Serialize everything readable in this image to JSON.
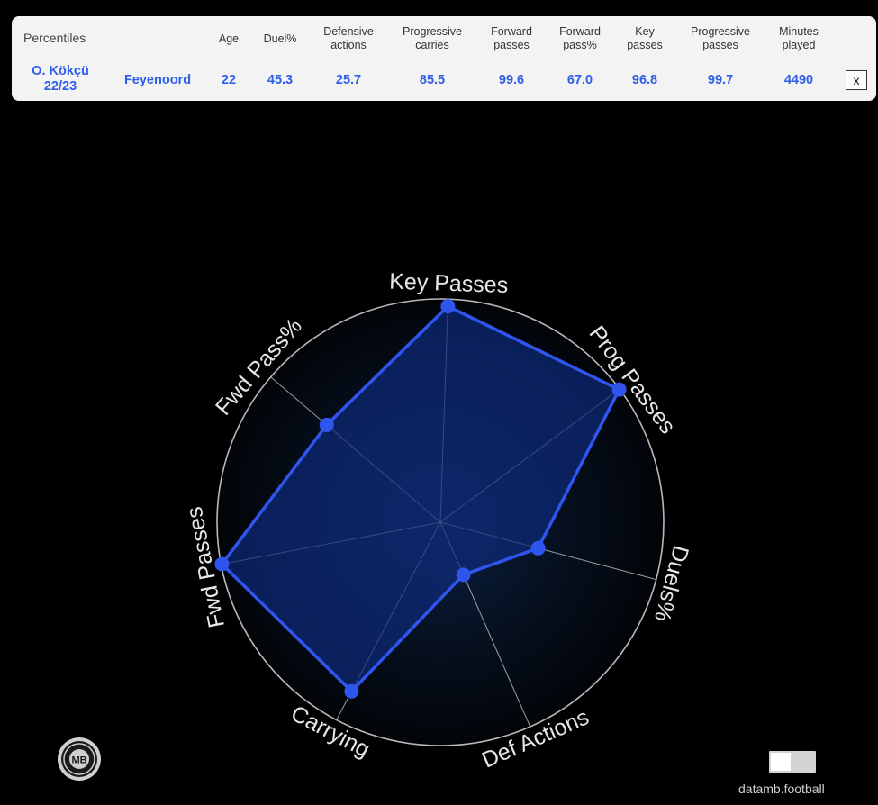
{
  "table": {
    "corner_label": "Percentiles",
    "headers": {
      "age": "Age",
      "duel": "Duel%",
      "defensive": [
        "Defensive",
        "actions"
      ],
      "carries": [
        "Progressive",
        "carries"
      ],
      "fwd_passes": [
        "Forward",
        "passes"
      ],
      "fwd_pass_pct": [
        "Forward",
        "pass%"
      ],
      "key_passes": [
        "Key",
        "passes"
      ],
      "prog_passes": [
        "Progressive",
        "passes"
      ],
      "minutes": [
        "Minutes",
        "played"
      ]
    },
    "row": {
      "player": [
        "O. Kökçü",
        "22/23"
      ],
      "team": "Feyenoord",
      "age": "22",
      "duel": "45.3",
      "defensive": "25.7",
      "carries": "85.5",
      "fwd_passes": "99.6",
      "fwd_pass_pct": "67.0",
      "key_passes": "96.8",
      "prog_passes": "99.7",
      "minutes": "4490"
    },
    "close_label": "x"
  },
  "chart_data": {
    "type": "radar",
    "range": [
      0,
      100
    ],
    "axes": [
      "Key Passes",
      "Prog Passes",
      "Duels%",
      "Def Actions",
      "Carrying",
      "Fwd Passes",
      "Fwd Pass%"
    ],
    "values": [
      96.8,
      99.7,
      45.3,
      25.7,
      85.5,
      99.6,
      67.0
    ],
    "colors": {
      "line": "#2f55ee",
      "fill": "#0e2a78",
      "grid": "#b8b8b8",
      "label": "#e6e6e6"
    }
  },
  "logo_icon": "mb-logo-icon",
  "logo_text": "MB",
  "credit": "datamb.football"
}
